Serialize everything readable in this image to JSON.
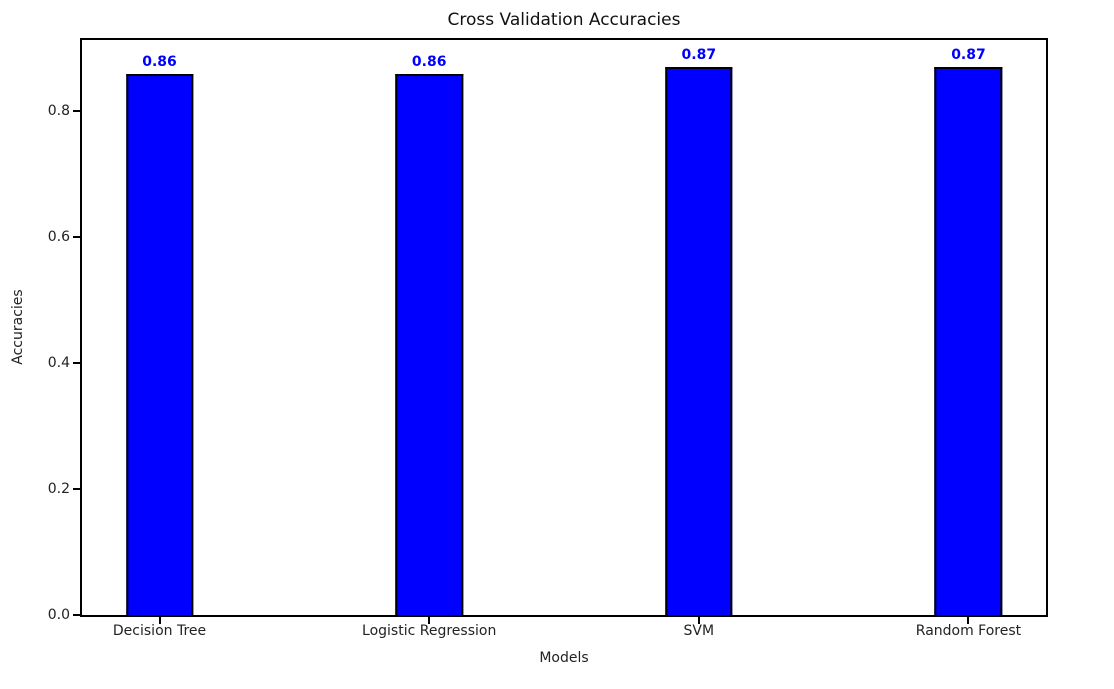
{
  "chart_data": {
    "type": "bar",
    "title": "Cross Validation Accuracies",
    "xlabel": "Models",
    "ylabel": "Accuracies",
    "categories": [
      "Decision Tree",
      "Logistic Regression",
      "SVM",
      "Random Forest"
    ],
    "values": [
      0.86,
      0.86,
      0.87,
      0.87
    ],
    "bar_labels": [
      "0.86",
      "0.86",
      "0.87",
      "0.87"
    ],
    "ytick_labels": [
      "0.0",
      "0.2",
      "0.4",
      "0.6",
      "0.8"
    ],
    "ytick_values": [
      0.0,
      0.2,
      0.4,
      0.6,
      0.8
    ],
    "ylim": [
      0,
      0.9135
    ],
    "xlim": [
      -0.2875,
      3.2875
    ],
    "bar_width": 0.25,
    "bar_color": "#0000ff",
    "bar_edge_color": "#000000",
    "value_label_color": "#0000ff",
    "grid": false,
    "legend": null
  }
}
